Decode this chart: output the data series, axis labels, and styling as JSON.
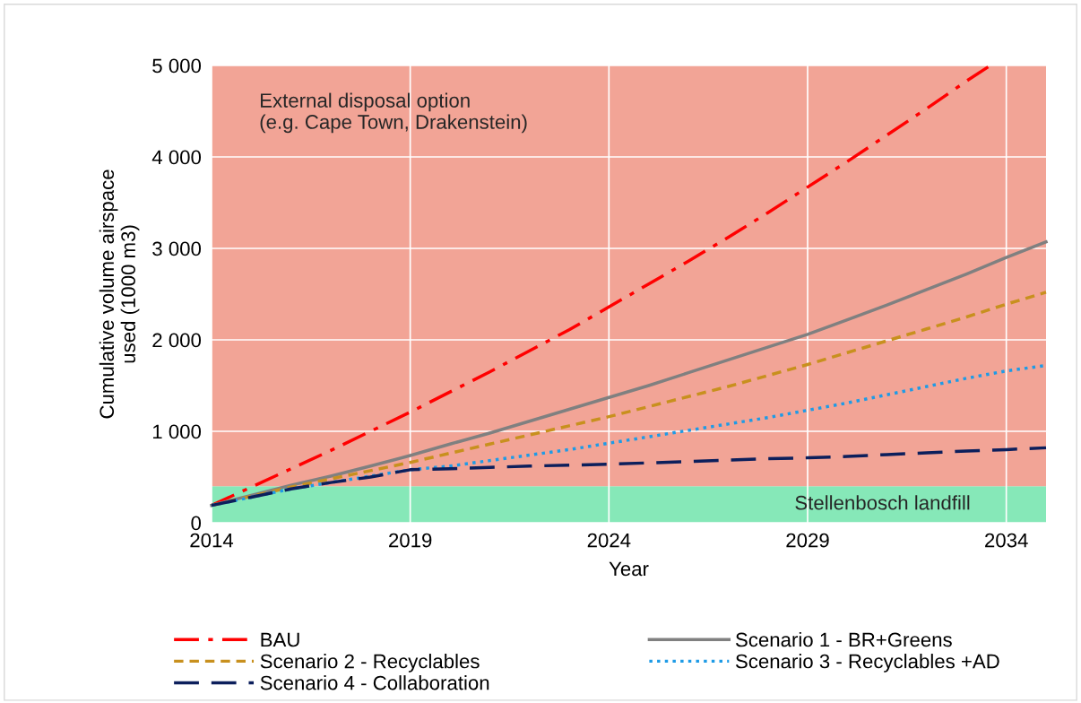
{
  "chart_data": {
    "type": "line",
    "xlabel": "Year",
    "ylabel": "Cumulative volume airspace\nused (1000 m3)",
    "x": [
      2014,
      2015,
      2016,
      2017,
      2018,
      2019,
      2020,
      2021,
      2022,
      2023,
      2024,
      2025,
      2026,
      2027,
      2028,
      2029,
      2030,
      2031,
      2032,
      2033,
      2034,
      2035
    ],
    "series": [
      {
        "name": "BAU",
        "color": "#ff0000",
        "line_style": "dashdot",
        "x": [
          2014,
          2015,
          2016,
          2017,
          2018,
          2019,
          2020,
          2021,
          2022,
          2023,
          2024,
          2025,
          2026,
          2027,
          2028,
          2029,
          2030,
          2031,
          2032,
          2033,
          2033.6
        ],
        "values": [
          190,
          390,
          590,
          790,
          1000,
          1210,
          1430,
          1650,
          1880,
          2110,
          2360,
          2610,
          2860,
          3120,
          3390,
          3670,
          3950,
          4240,
          4530,
          4830,
          5000
        ]
      },
      {
        "name": "Scenario 1 - BR+Greens",
        "color": "#808080",
        "line_style": "solid",
        "values": [
          190,
          300,
          410,
          510,
          620,
          735,
          860,
          980,
          1110,
          1240,
          1370,
          1500,
          1640,
          1780,
          1920,
          2060,
          2220,
          2380,
          2550,
          2720,
          2900,
          3070
        ]
      },
      {
        "name": "Scenario 2 - Recyclables",
        "color": "#c8901e",
        "line_style": "dashed",
        "values": [
          190,
          290,
          390,
          480,
          570,
          660,
          760,
          860,
          960,
          1060,
          1160,
          1270,
          1380,
          1490,
          1610,
          1730,
          1860,
          1990,
          2120,
          2250,
          2390,
          2520
        ]
      },
      {
        "name": "Scenario 3 - Recyclables +AD",
        "color": "#1e9be6",
        "line_style": "dotted",
        "values": [
          190,
          280,
          370,
          440,
          510,
          580,
          620,
          680,
          740,
          800,
          870,
          940,
          1010,
          1080,
          1150,
          1230,
          1310,
          1400,
          1490,
          1580,
          1660,
          1720
        ]
      },
      {
        "name": "Scenario 4 - Collaboration",
        "color": "#0c1f5c",
        "line_style": "longdash",
        "values": [
          190,
          280,
          370,
          440,
          500,
          580,
          590,
          605,
          620,
          630,
          640,
          655,
          670,
          685,
          700,
          710,
          725,
          745,
          765,
          785,
          800,
          820
        ]
      }
    ],
    "bands": [
      {
        "axis": "y",
        "from": 0,
        "to": 400,
        "label": "Stellenbosch landfill",
        "color": "#86e8b8"
      },
      {
        "axis": "y",
        "from": 400,
        "to": 5000,
        "label": "External disposal option\n(e.g. Cape Town, Drakenstein)",
        "color": "#f2a496"
      }
    ],
    "xlim": [
      2014,
      2035
    ],
    "xticks": [
      2014,
      2019,
      2024,
      2029,
      2034
    ],
    "ylim": [
      0,
      5000
    ],
    "yticks": [
      0,
      {
        "value": 1000,
        "label": "1 000"
      },
      {
        "value": 2000,
        "label": "2 000"
      },
      {
        "value": 3000,
        "label": "3 000"
      },
      {
        "value": 4000,
        "label": "4 000"
      },
      {
        "value": 5000,
        "label": "5 000"
      }
    ],
    "grid": true,
    "legend": "bottom"
  }
}
